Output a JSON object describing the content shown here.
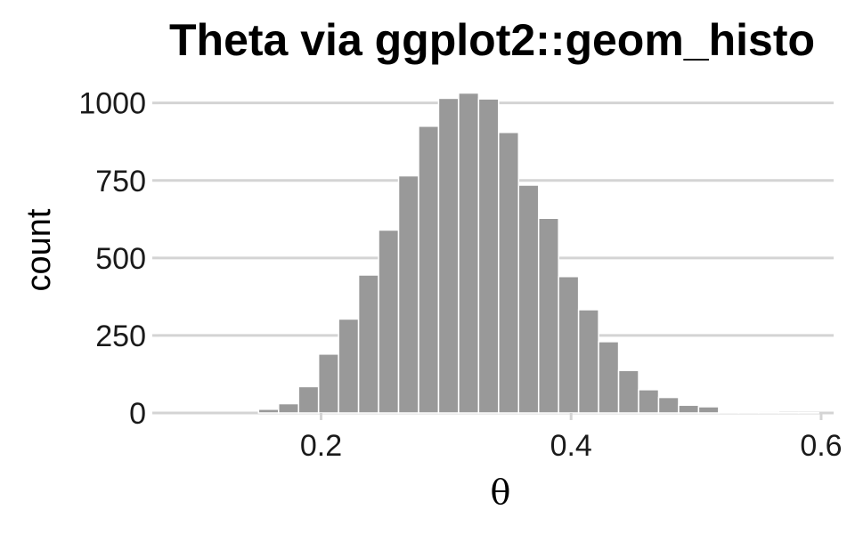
{
  "chart_data": {
    "type": "bar",
    "title": "Theta via ggplot2::geom_histo",
    "xlabel": "θ",
    "ylabel": "count",
    "xlim": [
      0.07,
      0.61
    ],
    "ylim": [
      0,
      1045
    ],
    "x_ticks": [
      0.2,
      0.4,
      0.6
    ],
    "x_tick_labels": [
      "0.2",
      "0.4",
      "0.6"
    ],
    "y_ticks": [
      0,
      250,
      500,
      750,
      1000
    ],
    "y_tick_labels": [
      "0",
      "250",
      "500",
      "750",
      "1000"
    ],
    "grid": "horizontal",
    "bar_color": "#999999",
    "bar_edge_color": "#ffffff",
    "grid_color": "#d4d4d4",
    "bins": [
      {
        "x0": 0.15,
        "x1": 0.166,
        "count": 12
      },
      {
        "x0": 0.166,
        "x1": 0.182,
        "count": 30
      },
      {
        "x0": 0.182,
        "x1": 0.198,
        "count": 85
      },
      {
        "x0": 0.198,
        "x1": 0.214,
        "count": 190
      },
      {
        "x0": 0.214,
        "x1": 0.23,
        "count": 303
      },
      {
        "x0": 0.23,
        "x1": 0.246,
        "count": 445
      },
      {
        "x0": 0.246,
        "x1": 0.262,
        "count": 590
      },
      {
        "x0": 0.262,
        "x1": 0.278,
        "count": 765
      },
      {
        "x0": 0.278,
        "x1": 0.294,
        "count": 925
      },
      {
        "x0": 0.294,
        "x1": 0.31,
        "count": 1015
      },
      {
        "x0": 0.31,
        "x1": 0.326,
        "count": 1032
      },
      {
        "x0": 0.326,
        "x1": 0.342,
        "count": 1013
      },
      {
        "x0": 0.342,
        "x1": 0.358,
        "count": 905
      },
      {
        "x0": 0.358,
        "x1": 0.374,
        "count": 735
      },
      {
        "x0": 0.374,
        "x1": 0.39,
        "count": 628
      },
      {
        "x0": 0.39,
        "x1": 0.406,
        "count": 440
      },
      {
        "x0": 0.406,
        "x1": 0.422,
        "count": 333
      },
      {
        "x0": 0.422,
        "x1": 0.438,
        "count": 230
      },
      {
        "x0": 0.438,
        "x1": 0.454,
        "count": 137
      },
      {
        "x0": 0.454,
        "x1": 0.47,
        "count": 75
      },
      {
        "x0": 0.47,
        "x1": 0.486,
        "count": 50
      },
      {
        "x0": 0.486,
        "x1": 0.502,
        "count": 25
      },
      {
        "x0": 0.502,
        "x1": 0.518,
        "count": 20
      },
      {
        "x0": 0.518,
        "x1": 0.534,
        "count": 4
      },
      {
        "x0": 0.534,
        "x1": 0.55,
        "count": 3
      },
      {
        "x0": 0.55,
        "x1": 0.566,
        "count": 2
      },
      {
        "x0": 0.566,
        "x1": 0.582,
        "count": 1
      },
      {
        "x0": 0.582,
        "x1": 0.598,
        "count": 1
      }
    ]
  }
}
